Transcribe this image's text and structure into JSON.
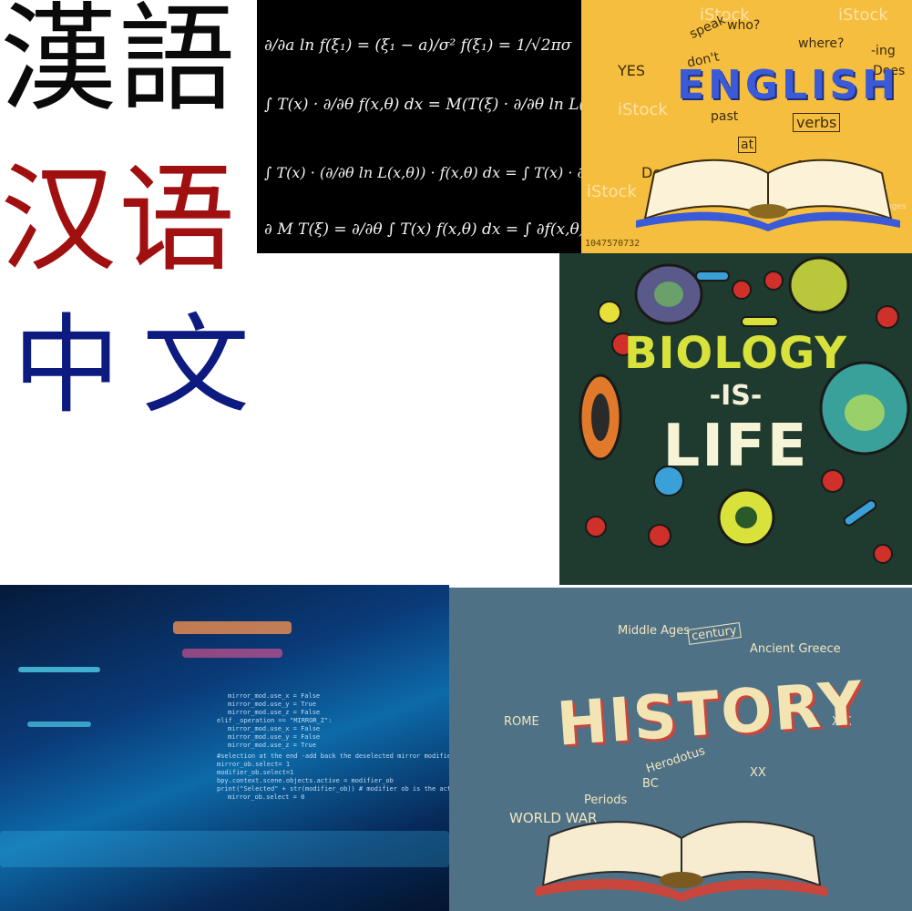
{
  "chinese": {
    "traditional": "漢語",
    "simplified": "汉语",
    "zhongwen": "中文"
  },
  "math": {
    "lines": [
      "∂/∂a ln f(ξ₁) = (ξ₁ − a)/σ² f(ξ₁) = 1/√2πσ",
      "∫ T(x) · ∂/∂θ f(x,θ) dx = M(T(ξ) · ∂/∂θ ln L(ξ,θ))",
      "∫ T(x) · (∂/∂θ ln L(x,θ)) · f(x,θ) dx = ∫ T(x) · ∂f(x,θ)/f(x,θ)",
      "∂ M T(ξ) = ∂/∂θ ∫ T(x) f(x,θ) dx = ∫ ∂f(x,θ)"
    ]
  },
  "english": {
    "title": "ENGLISH",
    "doodles": [
      "YES",
      "don't",
      "speak",
      "who?",
      "where?",
      "-ing",
      "Does",
      "past",
      "verbs",
      "at",
      "on",
      "Do"
    ],
    "watermark": "iStock",
    "watermark_sub": "by Getty Images",
    "stock_id": "1047570732"
  },
  "biology": {
    "line1": "BIOLOGY",
    "line2": "-IS-",
    "line3": "LIFE"
  },
  "code": {
    "lines": [
      "mirror_mod.use_x = False",
      "mirror_mod.use_y = True",
      "mirror_mod.use_z = False",
      "elif _operation == \"MIRROR_Z\":",
      "mirror_mod.use_x = False",
      "mirror_mod.use_y = False",
      "mirror_mod.use_z = True",
      "#selection at the end -add back the deselected mirror modifier object",
      "mirror_ob.select= 1",
      "modifier_ob.select=1",
      "bpy.context.scene.objects.active = modifier_ob",
      "print(\"Selected\" + str(modifier_ob)) # modifier ob is the active ob",
      "mirror_ob.select = 0"
    ]
  },
  "history": {
    "title": "HISTORY",
    "doodles": [
      "Middle Ages",
      "century",
      "Ancient Greece",
      "ROME",
      "Herodotus",
      "BC",
      "Periods",
      "WORLD WAR",
      "XIX",
      "XX"
    ]
  }
}
